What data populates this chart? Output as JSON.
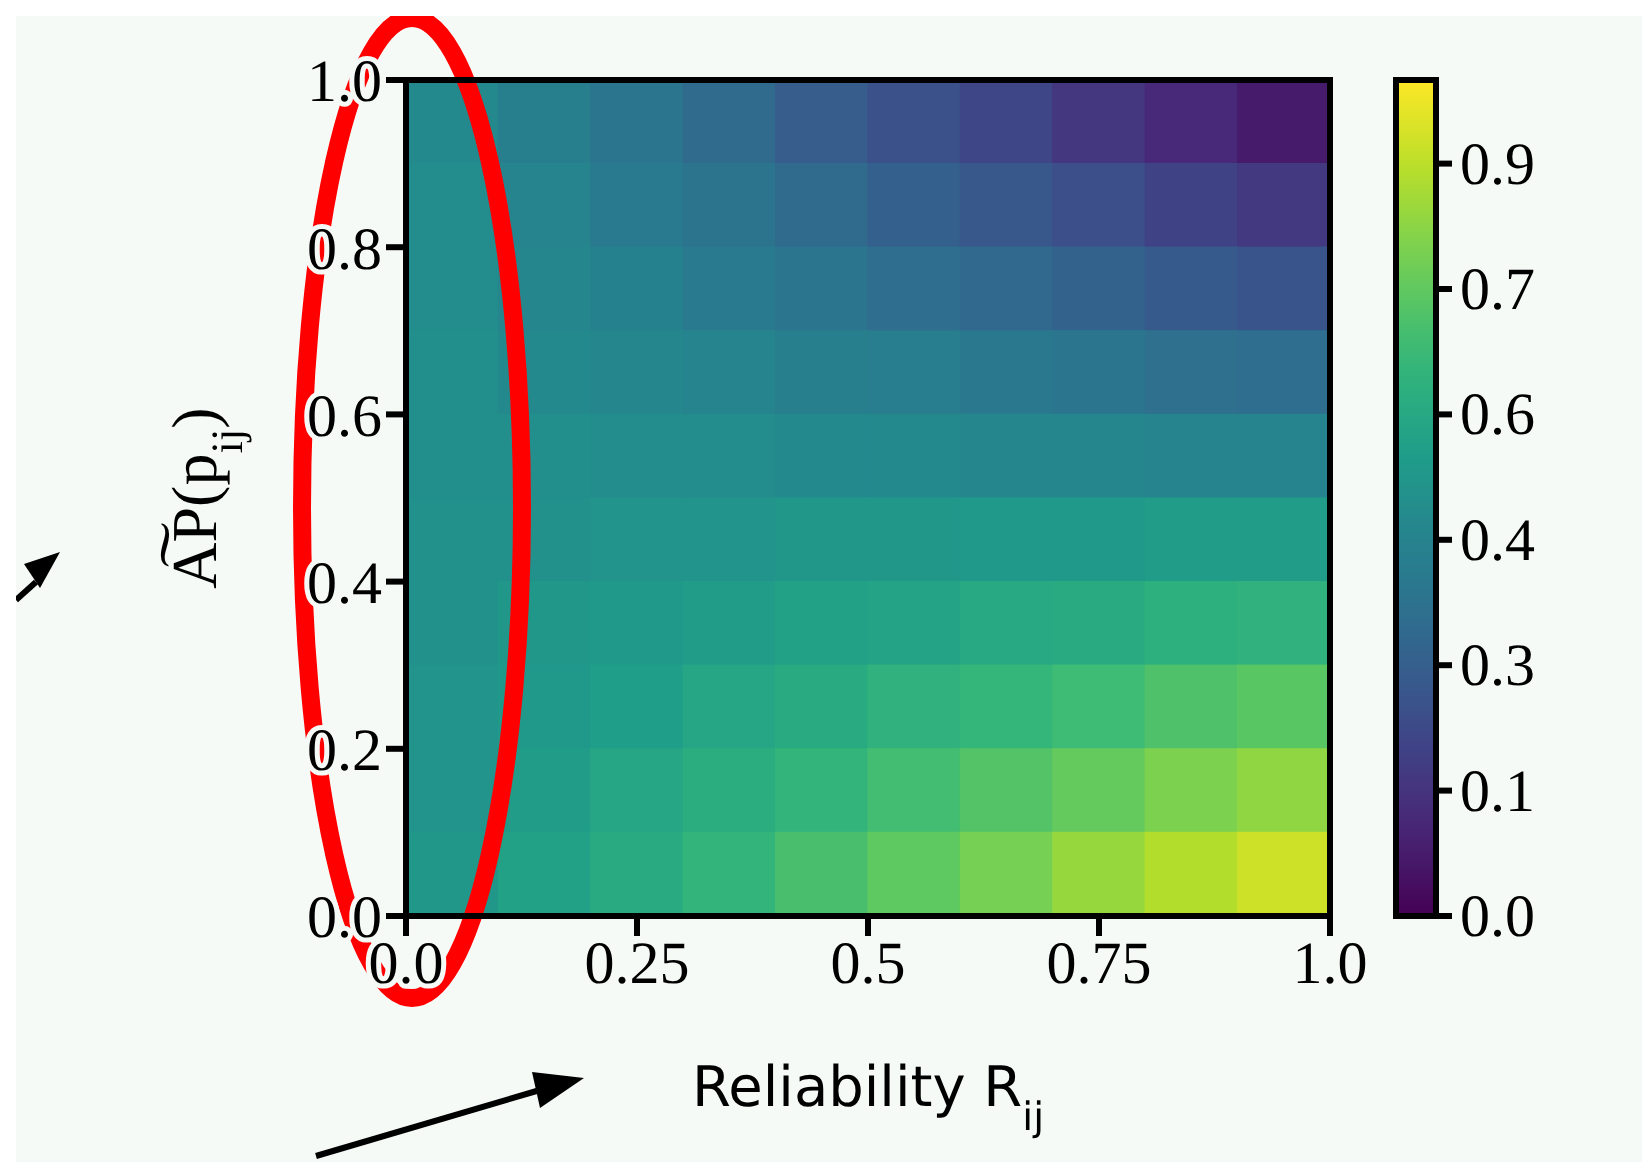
{
  "chart_data": {
    "type": "heatmap",
    "xlabel": "Reliability R$_{ij}$",
    "ylabel": "A͠P(p$_{ij}$)",
    "x": [
      0.05,
      0.15,
      0.25,
      0.35,
      0.45,
      0.55,
      0.65,
      0.75,
      0.85,
      0.95
    ],
    "y": [
      0.95,
      0.85,
      0.75,
      0.65,
      0.55,
      0.45,
      0.35,
      0.25,
      0.15,
      0.05
    ],
    "xlim": [
      0,
      1
    ],
    "ylim": [
      0,
      1
    ],
    "xticks": [
      {
        "value": 0,
        "label": "0.0"
      },
      {
        "value": 0.25,
        "label": "0.25"
      },
      {
        "value": 0.5,
        "label": "0.5"
      },
      {
        "value": 0.75,
        "label": "0.75"
      },
      {
        "value": 1,
        "label": "1.0"
      }
    ],
    "yticks": [
      {
        "value": 0,
        "label": "0.0"
      },
      {
        "value": 0.2,
        "label": "0.2"
      },
      {
        "value": 0.4,
        "label": "0.4"
      },
      {
        "value": 0.6,
        "label": "0.6"
      },
      {
        "value": 0.8,
        "label": "0.8"
      },
      {
        "value": 1,
        "label": "1.0"
      }
    ],
    "clim": [
      0,
      0.95
    ],
    "cticks": [
      {
        "value": 0,
        "label": "0.0"
      },
      {
        "value": 0.1425,
        "label": "0.1"
      },
      {
        "value": 0.285,
        "label": "0.3"
      },
      {
        "value": 0.4275,
        "label": "0.4"
      },
      {
        "value": 0.57,
        "label": "0.6"
      },
      {
        "value": 0.7125,
        "label": "0.7"
      },
      {
        "value": 0.855,
        "label": "0.9"
      }
    ],
    "cells": [
      [
        0.45,
        0.41,
        0.37,
        0.33,
        0.28,
        0.24,
        0.2,
        0.15,
        0.11,
        0.07
      ],
      [
        0.46,
        0.43,
        0.39,
        0.36,
        0.33,
        0.29,
        0.26,
        0.23,
        0.19,
        0.16
      ],
      [
        0.46,
        0.44,
        0.42,
        0.39,
        0.37,
        0.34,
        0.32,
        0.3,
        0.27,
        0.25
      ],
      [
        0.47,
        0.45,
        0.44,
        0.43,
        0.41,
        0.4,
        0.38,
        0.37,
        0.35,
        0.34
      ],
      [
        0.47,
        0.47,
        0.46,
        0.46,
        0.45,
        0.45,
        0.44,
        0.44,
        0.43,
        0.43
      ],
      [
        0.48,
        0.48,
        0.49,
        0.49,
        0.5,
        0.5,
        0.51,
        0.51,
        0.52,
        0.52
      ],
      [
        0.48,
        0.5,
        0.51,
        0.52,
        0.54,
        0.55,
        0.57,
        0.58,
        0.6,
        0.61
      ],
      [
        0.49,
        0.51,
        0.53,
        0.56,
        0.58,
        0.61,
        0.63,
        0.65,
        0.68,
        0.7
      ],
      [
        0.49,
        0.52,
        0.56,
        0.59,
        0.62,
        0.66,
        0.69,
        0.72,
        0.76,
        0.79
      ],
      [
        0.5,
        0.54,
        0.58,
        0.62,
        0.67,
        0.71,
        0.75,
        0.8,
        0.84,
        0.88
      ]
    ]
  }
}
